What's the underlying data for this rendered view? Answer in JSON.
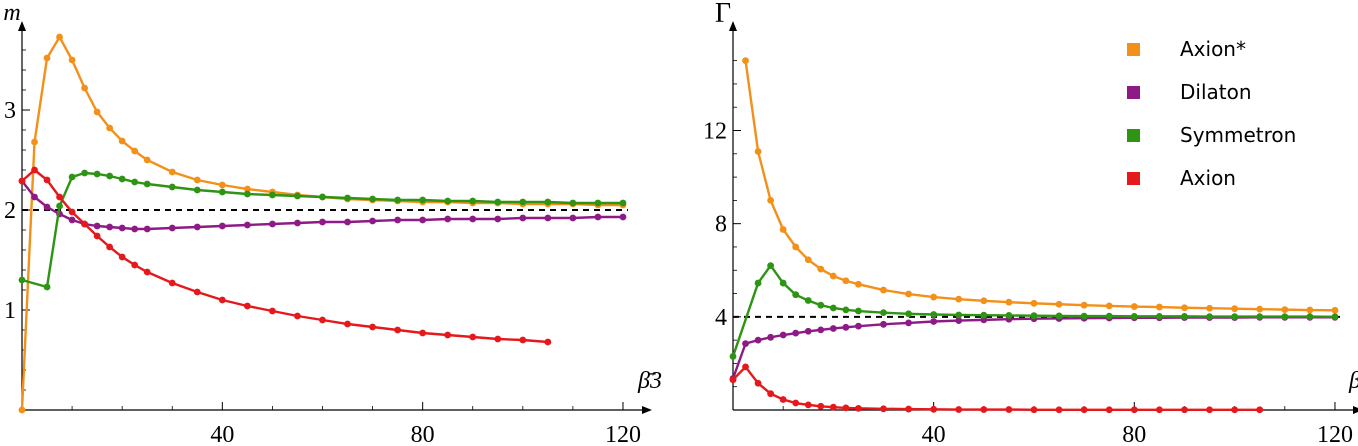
{
  "chart_data": [
    {
      "type": "line",
      "ylabel": "m",
      "xlabel": "β̄3",
      "xlim": [
        0,
        122
      ],
      "ylim": [
        0,
        3.75
      ],
      "x_ticks": [
        "40",
        "80",
        "120"
      ],
      "y_ticks": [
        "1",
        "2",
        "3"
      ],
      "reference_line": 2,
      "series": [
        {
          "name": "Axion*",
          "color": "#F39019",
          "x": [
            0,
            2.5,
            5,
            7.5,
            10,
            12.5,
            15,
            17.5,
            20,
            22.5,
            25,
            30,
            35,
            40,
            45,
            50,
            55,
            60,
            65,
            70,
            75,
            80,
            85,
            90,
            95,
            100,
            105,
            110,
            115,
            120
          ],
          "y": [
            0,
            2.68,
            3.52,
            3.73,
            3.5,
            3.22,
            2.98,
            2.82,
            2.69,
            2.59,
            2.5,
            2.38,
            2.3,
            2.25,
            2.21,
            2.18,
            2.15,
            2.13,
            2.11,
            2.1,
            2.09,
            2.08,
            2.08,
            2.07,
            2.07,
            2.06,
            2.06,
            2.06,
            2.05,
            2.05
          ]
        },
        {
          "name": "Dilaton",
          "color": "#8E1A86",
          "x": [
            0,
            2.5,
            5,
            7.5,
            10,
            12.5,
            15,
            17.5,
            20,
            22.5,
            25,
            30,
            35,
            40,
            45,
            50,
            55,
            60,
            65,
            70,
            75,
            80,
            85,
            90,
            95,
            100,
            105,
            110,
            115,
            120
          ],
          "y": [
            2.29,
            2.13,
            2.03,
            1.96,
            1.9,
            1.86,
            1.84,
            1.83,
            1.82,
            1.81,
            1.81,
            1.82,
            1.83,
            1.84,
            1.85,
            1.86,
            1.87,
            1.88,
            1.88,
            1.89,
            1.9,
            1.9,
            1.91,
            1.91,
            1.91,
            1.92,
            1.92,
            1.92,
            1.93,
            1.93
          ]
        },
        {
          "name": "Symmetron",
          "color": "#2D9414",
          "x": [
            0,
            5,
            7.5,
            10,
            12.5,
            15,
            17.5,
            20,
            22.5,
            25,
            30,
            35,
            40,
            45,
            50,
            55,
            60,
            65,
            70,
            75,
            80,
            85,
            90,
            95,
            100,
            105,
            110,
            115,
            120
          ],
          "y": [
            1.3,
            1.23,
            2.04,
            2.33,
            2.37,
            2.36,
            2.34,
            2.31,
            2.28,
            2.26,
            2.23,
            2.2,
            2.18,
            2.16,
            2.15,
            2.14,
            2.13,
            2.12,
            2.11,
            2.1,
            2.1,
            2.09,
            2.09,
            2.08,
            2.08,
            2.08,
            2.07,
            2.07,
            2.07
          ]
        },
        {
          "name": "Axion",
          "color": "#E5191C",
          "x": [
            0,
            2.5,
            5,
            7.5,
            10,
            12.5,
            15,
            17.5,
            20,
            22.5,
            25,
            30,
            35,
            40,
            45,
            50,
            55,
            60,
            65,
            70,
            75,
            80,
            85,
            90,
            95,
            100,
            105
          ],
          "y": [
            2.29,
            2.4,
            2.3,
            2.13,
            1.98,
            1.86,
            1.74,
            1.63,
            1.53,
            1.45,
            1.38,
            1.27,
            1.18,
            1.1,
            1.04,
            0.99,
            0.94,
            0.9,
            0.86,
            0.83,
            0.8,
            0.77,
            0.75,
            0.73,
            0.71,
            0.7,
            0.68
          ]
        }
      ]
    },
    {
      "type": "line",
      "ylabel": "Γ",
      "xlabel": "β̄3",
      "xlim": [
        0,
        122
      ],
      "ylim": [
        0,
        15.8
      ],
      "x_ticks": [
        "40",
        "80",
        "120"
      ],
      "y_ticks": [
        "4",
        "8",
        "12"
      ],
      "reference_line": 4,
      "legend_position": "top-right",
      "series": [
        {
          "name": "Axion*",
          "color": "#F39019",
          "x": [
            2.5,
            5,
            7.5,
            10,
            12.5,
            15,
            17.5,
            20,
            22.5,
            25,
            30,
            35,
            40,
            45,
            50,
            55,
            60,
            65,
            70,
            75,
            80,
            85,
            90,
            95,
            100,
            105,
            110,
            115,
            120
          ],
          "y": [
            15,
            11.1,
            9.0,
            7.75,
            7.0,
            6.45,
            6.05,
            5.75,
            5.55,
            5.4,
            5.15,
            4.98,
            4.85,
            4.76,
            4.69,
            4.63,
            4.58,
            4.54,
            4.5,
            4.47,
            4.44,
            4.42,
            4.39,
            4.37,
            4.35,
            4.33,
            4.31,
            4.29,
            4.28
          ]
        },
        {
          "name": "Dilaton",
          "color": "#8E1A86",
          "x": [
            0,
            2.5,
            5,
            7.5,
            10,
            12.5,
            15,
            17.5,
            20,
            22.5,
            25,
            30,
            35,
            40,
            45,
            50,
            55,
            60,
            65,
            70,
            75,
            80,
            85,
            90,
            95,
            100,
            105,
            110,
            115,
            120
          ],
          "y": [
            1.35,
            2.85,
            3.0,
            3.12,
            3.22,
            3.3,
            3.38,
            3.44,
            3.5,
            3.55,
            3.6,
            3.68,
            3.74,
            3.8,
            3.84,
            3.87,
            3.9,
            3.92,
            3.93,
            3.94,
            3.95,
            3.96,
            3.96,
            3.97,
            3.97,
            3.97,
            3.98,
            3.98,
            3.98,
            3.98
          ]
        },
        {
          "name": "Symmetron",
          "color": "#2D9414",
          "x": [
            0,
            5,
            7.5,
            10,
            12.5,
            15,
            17.5,
            20,
            22.5,
            25,
            30,
            35,
            40,
            45,
            50,
            55,
            60,
            65,
            70,
            75,
            80,
            85,
            90,
            95,
            100,
            105,
            110,
            115,
            120
          ],
          "y": [
            2.3,
            5.45,
            6.2,
            5.45,
            4.95,
            4.7,
            4.5,
            4.38,
            4.3,
            4.25,
            4.18,
            4.13,
            4.1,
            4.08,
            4.07,
            4.06,
            4.05,
            4.04,
            4.03,
            4.03,
            4.02,
            4.02,
            4.02,
            4.01,
            4.01,
            4.01,
            4.01,
            4.01,
            4.0
          ]
        },
        {
          "name": "Axion",
          "color": "#E5191C",
          "x": [
            0,
            2.5,
            5,
            7.5,
            10,
            12.5,
            15,
            17.5,
            20,
            22.5,
            25,
            30,
            35,
            40,
            45,
            50,
            55,
            60,
            65,
            70,
            75,
            80,
            85,
            90,
            95,
            100,
            105
          ],
          "y": [
            1.3,
            1.85,
            1.15,
            0.7,
            0.45,
            0.3,
            0.22,
            0.16,
            0.12,
            0.09,
            0.07,
            0.05,
            0.04,
            0.03,
            0.02,
            0.02,
            0.02,
            0.01,
            0.01,
            0.01,
            0.01,
            0.01,
            0.01,
            0.01,
            0.01,
            0.01,
            0.01
          ]
        }
      ]
    }
  ]
}
